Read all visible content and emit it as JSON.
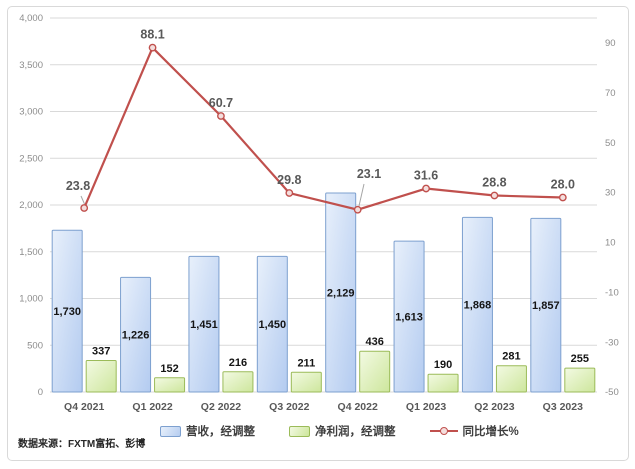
{
  "chart_data": {
    "type": "bar",
    "subtype": "combo-bar-line",
    "categories": [
      "Q4 2021",
      "Q1 2022",
      "Q2 2022",
      "Q3 2022",
      "Q4 2022",
      "Q1 2023",
      "Q2 2023",
      "Q3 2023"
    ],
    "series": [
      {
        "name": "营收，经调整",
        "type": "bar",
        "axis": "left",
        "values": [
          1730,
          1226,
          1451,
          1450,
          2129,
          1613,
          1868,
          1857
        ],
        "labels": [
          "1,730",
          "1,226",
          "1,451",
          "1,450",
          "2,129",
          "1,613",
          "1,868",
          "1,857"
        ],
        "fill_light": "#e8f0fb",
        "fill_dark": "#b3cbf0",
        "border_color": "#7da0cf"
      },
      {
        "name": "净利润，经调整",
        "type": "bar",
        "axis": "left",
        "values": [
          337,
          152,
          216,
          211,
          436,
          190,
          281,
          255
        ],
        "labels": [
          "337",
          "152",
          "216",
          "211",
          "436",
          "190",
          "281",
          "255"
        ],
        "fill_light": "#f3fae3",
        "fill_dark": "#cde69c",
        "border_color": "#9bbb59"
      },
      {
        "name": "同比增长%",
        "type": "line",
        "axis": "right",
        "values": [
          23.8,
          88.1,
          60.7,
          29.8,
          23.1,
          31.6,
          28.8,
          28.0
        ],
        "labels": [
          "23.8",
          "88.1",
          "60.7",
          "29.8",
          "23.1",
          "31.6",
          "28.8",
          "28.0"
        ],
        "line_color": "#c0504d",
        "marker_fill": "#f4dedd"
      }
    ],
    "left_axis": {
      "min": 0,
      "max": 4000,
      "step": 500,
      "tick_labels": [
        "4,000",
        "3,500",
        "3,000",
        "2,500",
        "2,000",
        "1,500",
        "1,000",
        "500",
        "0"
      ]
    },
    "right_axis": {
      "min": -50,
      "max": 100,
      "tick_values": [
        90,
        70,
        50,
        30,
        10,
        -10,
        -30,
        -50
      ]
    },
    "grid": "horizontal",
    "gridline_color": "#d9d9d9",
    "legend_position": "bottom",
    "title": ""
  },
  "footer": {
    "source": "数据来源：FXTM富拓、彭博"
  }
}
